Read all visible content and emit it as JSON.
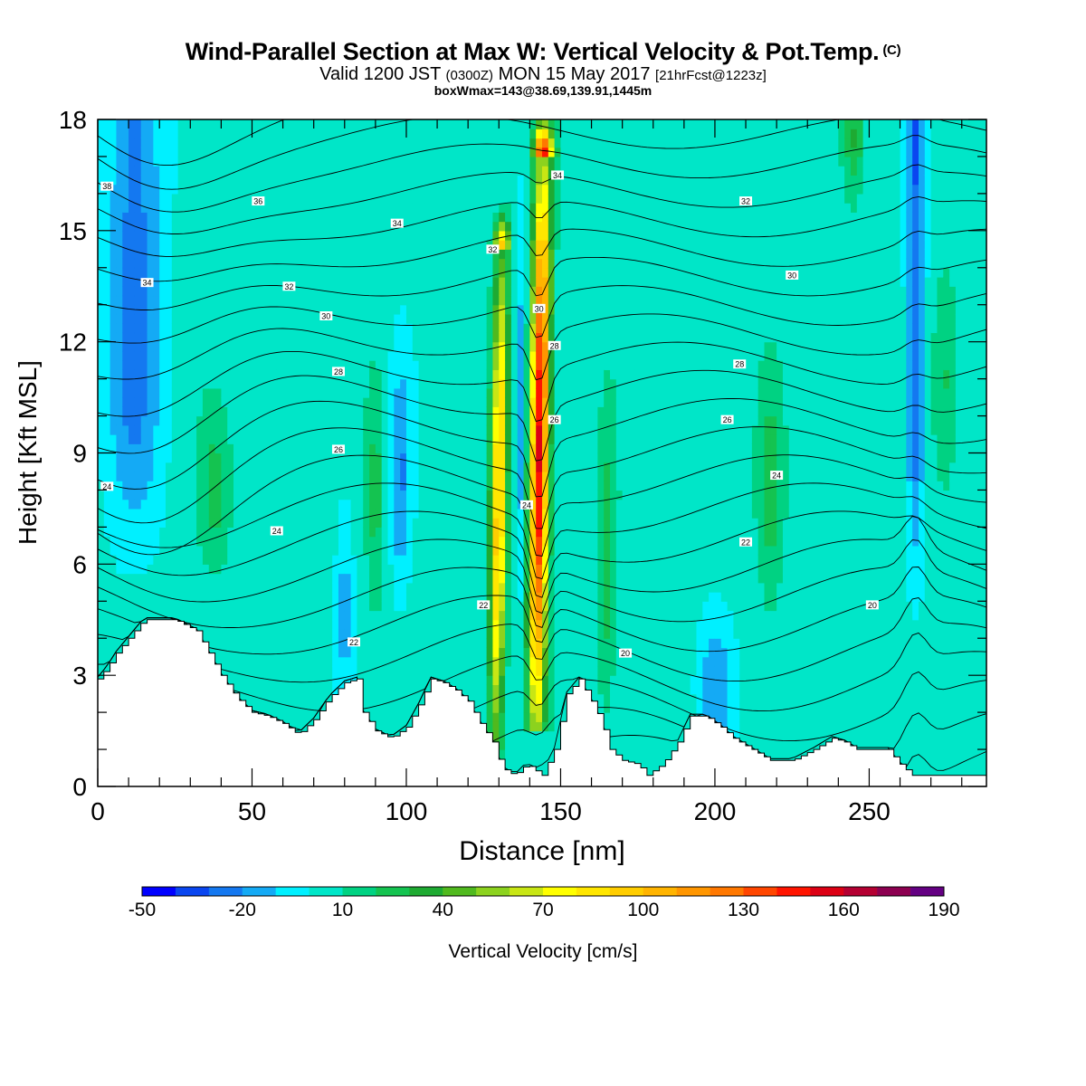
{
  "header": {
    "title": "Wind-Parallel Section at Max W: Vertical Velocity & Pot.Temp.",
    "title_mark": "(C)",
    "valid_prefix": "Valid 1200 JST",
    "valid_utc": "(0300Z)",
    "valid_date": "MON 15 May 2017",
    "forecast": "[21hrFcst@1223z]",
    "box_info": "boxWmax=143@38.69,139.91,1445m"
  },
  "chart_data": {
    "type": "heatmap",
    "xlabel": "Distance [nm]",
    "ylabel": "Height [Kft MSL]",
    "xlim": [
      0,
      288
    ],
    "ylim": [
      0,
      18
    ],
    "x_ticks": [
      "0",
      "50",
      "100",
      "150",
      "200",
      "250"
    ],
    "x_tick_values": [
      0,
      50,
      100,
      150,
      200,
      250
    ],
    "y_ticks": [
      "0",
      "3",
      "6",
      "9",
      "12",
      "15",
      "18"
    ],
    "y_tick_values": [
      0,
      3,
      6,
      9,
      12,
      15,
      18
    ],
    "colorbar": {
      "label": "Vertical Velocity [cm/s]",
      "tick_labels": [
        "-50",
        "-20",
        "10",
        "40",
        "70",
        "100",
        "130",
        "160",
        "190"
      ],
      "tick_values": [
        -50,
        -20,
        10,
        40,
        70,
        100,
        130,
        160,
        190
      ],
      "levels": [
        -50,
        -40,
        -30,
        -20,
        -10,
        0,
        10,
        20,
        30,
        40,
        50,
        60,
        70,
        80,
        90,
        100,
        110,
        120,
        130,
        140,
        150,
        160,
        170,
        180,
        190
      ],
      "colors": [
        "#0000ff",
        "#0a46f0",
        "#1478f0",
        "#14aaf5",
        "#00f0ff",
        "#00e6c8",
        "#00d282",
        "#14c350",
        "#1eaa32",
        "#50b91e",
        "#8cd21e",
        "#c8e614",
        "#ffff00",
        "#ffe600",
        "#ffcd00",
        "#ffb400",
        "#ff9600",
        "#ff7800",
        "#ff4600",
        "#ff1400",
        "#dc0014",
        "#b40032",
        "#8c0050",
        "#640082"
      ]
    },
    "terrain": [
      [
        0,
        2.9
      ],
      [
        3,
        3.2
      ],
      [
        6,
        3.6
      ],
      [
        9,
        3.9
      ],
      [
        12,
        4.2
      ],
      [
        15,
        4.5
      ],
      [
        25,
        4.5
      ],
      [
        32,
        4.2
      ],
      [
        36,
        3.6
      ],
      [
        40,
        3.0
      ],
      [
        45,
        2.4
      ],
      [
        50,
        2.0
      ],
      [
        55,
        1.9
      ],
      [
        60,
        1.7
      ],
      [
        65,
        1.4
      ],
      [
        70,
        1.8
      ],
      [
        75,
        2.4
      ],
      [
        80,
        2.8
      ],
      [
        84,
        2.9
      ],
      [
        86,
        2.0
      ],
      [
        90,
        1.5
      ],
      [
        95,
        1.3
      ],
      [
        100,
        1.6
      ],
      [
        104,
        2.2
      ],
      [
        108,
        2.9
      ],
      [
        112,
        2.8
      ],
      [
        116,
        2.6
      ],
      [
        120,
        2.3
      ],
      [
        124,
        1.7
      ],
      [
        128,
        1.2
      ],
      [
        131,
        0.5
      ],
      [
        135,
        0.3
      ],
      [
        139,
        0.6
      ],
      [
        144,
        0.3
      ],
      [
        148,
        1.0
      ],
      [
        152,
        2.5
      ],
      [
        156,
        2.9
      ],
      [
        160,
        2.3
      ],
      [
        163,
        1.8
      ],
      [
        166,
        1.0
      ],
      [
        170,
        0.7
      ],
      [
        175,
        0.6
      ],
      [
        178,
        0.3
      ],
      [
        183,
        0.6
      ],
      [
        188,
        1.2
      ],
      [
        192,
        1.9
      ],
      [
        197,
        1.9
      ],
      [
        202,
        1.6
      ],
      [
        206,
        1.3
      ],
      [
        212,
        1.0
      ],
      [
        218,
        0.7
      ],
      [
        225,
        0.7
      ],
      [
        232,
        1.0
      ],
      [
        238,
        1.3
      ],
      [
        242,
        1.2
      ],
      [
        246,
        1.0
      ],
      [
        250,
        1.0
      ],
      [
        256,
        1.0
      ],
      [
        260,
        0.6
      ],
      [
        264,
        0.3
      ],
      [
        270,
        0.3
      ],
      [
        288,
        0.3
      ]
    ],
    "updrafts": [
      {
        "x": 130,
        "width": 2.5,
        "z_lo": 0.8,
        "z_hi": 14.5,
        "wmax": 95
      },
      {
        "x": 143,
        "width": 3.0,
        "z_lo": 1.5,
        "z_hi": 17.0,
        "wmax": 150
      }
    ],
    "pot_temp_labels": [
      {
        "x": 3,
        "y": 16.2,
        "text": "38"
      },
      {
        "x": 52,
        "y": 15.8,
        "text": "36"
      },
      {
        "x": 97,
        "y": 15.2,
        "text": "34"
      },
      {
        "x": 149,
        "y": 16.5,
        "text": "34"
      },
      {
        "x": 210,
        "y": 15.8,
        "text": "32"
      },
      {
        "x": 16,
        "y": 13.6,
        "text": "34"
      },
      {
        "x": 62,
        "y": 13.5,
        "text": "32"
      },
      {
        "x": 128,
        "y": 14.5,
        "text": "32"
      },
      {
        "x": 225,
        "y": 13.8,
        "text": "30"
      },
      {
        "x": 74,
        "y": 12.7,
        "text": "30"
      },
      {
        "x": 143,
        "y": 12.9,
        "text": "30"
      },
      {
        "x": 148,
        "y": 11.9,
        "text": "28"
      },
      {
        "x": 78,
        "y": 11.2,
        "text": "28"
      },
      {
        "x": 208,
        "y": 11.4,
        "text": "28"
      },
      {
        "x": 148,
        "y": 9.9,
        "text": "26"
      },
      {
        "x": 204,
        "y": 9.9,
        "text": "26"
      },
      {
        "x": 78,
        "y": 9.1,
        "text": "26"
      },
      {
        "x": 220,
        "y": 8.4,
        "text": "24"
      },
      {
        "x": 3,
        "y": 8.1,
        "text": "24"
      },
      {
        "x": 139,
        "y": 7.6,
        "text": "24"
      },
      {
        "x": 58,
        "y": 6.9,
        "text": "24"
      },
      {
        "x": 210,
        "y": 6.6,
        "text": "22"
      },
      {
        "x": 125,
        "y": 4.9,
        "text": "22"
      },
      {
        "x": 251,
        "y": 4.9,
        "text": "20"
      },
      {
        "x": 83,
        "y": 3.9,
        "text": "22"
      },
      {
        "x": 171,
        "y": 3.6,
        "text": "20"
      }
    ]
  }
}
